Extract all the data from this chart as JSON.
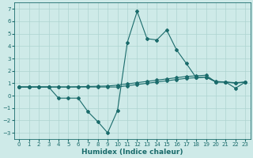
{
  "xlabel": "Humidex (Indice chaleur)",
  "background_color": "#ceeae8",
  "grid_color": "#aed4d0",
  "line_color": "#1a6b6b",
  "xlim": [
    -0.5,
    23.5
  ],
  "ylim": [
    -3.5,
    7.5
  ],
  "xticks": [
    0,
    1,
    2,
    3,
    4,
    5,
    6,
    7,
    8,
    9,
    10,
    11,
    12,
    13,
    14,
    15,
    16,
    17,
    18,
    19,
    20,
    21,
    22,
    23
  ],
  "yticks": [
    -3,
    -2,
    -1,
    0,
    1,
    2,
    3,
    4,
    5,
    6,
    7
  ],
  "series1_x": [
    0,
    1,
    2,
    3,
    4,
    5,
    6,
    7,
    8,
    9,
    10,
    11,
    12,
    13,
    14,
    15,
    16,
    17,
    18,
    19,
    20,
    21,
    22,
    23
  ],
  "series1_y": [
    0.7,
    0.7,
    0.7,
    0.7,
    0.7,
    0.7,
    0.7,
    0.7,
    0.7,
    0.7,
    0.7,
    0.8,
    0.9,
    1.0,
    1.1,
    1.2,
    1.3,
    1.4,
    1.45,
    1.5,
    1.1,
    1.1,
    1.05,
    1.1
  ],
  "series2_x": [
    0,
    1,
    2,
    3,
    4,
    5,
    6,
    7,
    8,
    9,
    10,
    11,
    12,
    13,
    14,
    15,
    16,
    17,
    18,
    19,
    20,
    21,
    22,
    23
  ],
  "series2_y": [
    0.7,
    0.7,
    0.7,
    0.7,
    0.7,
    0.7,
    0.72,
    0.74,
    0.76,
    0.78,
    0.85,
    0.95,
    1.05,
    1.15,
    1.25,
    1.35,
    1.45,
    1.55,
    1.6,
    1.65,
    1.1,
    1.1,
    1.0,
    1.1
  ],
  "series3_x": [
    0,
    1,
    2,
    3,
    4,
    5,
    6,
    7,
    8,
    9,
    10,
    11,
    12,
    13,
    14,
    15,
    16,
    17,
    18,
    19,
    20,
    21,
    22,
    23
  ],
  "series3_y": [
    0.7,
    0.7,
    0.7,
    0.7,
    -0.2,
    -0.2,
    -0.2,
    -1.3,
    -2.1,
    -3.0,
    -1.2,
    4.3,
    6.8,
    4.6,
    4.5,
    5.3,
    3.7,
    2.6,
    1.45,
    1.5,
    1.15,
    1.1,
    0.6,
    1.1
  ],
  "marker": "D",
  "markersize": 2,
  "linewidth": 0.8,
  "tick_fontsize": 5.0,
  "label_fontsize": 6.5
}
